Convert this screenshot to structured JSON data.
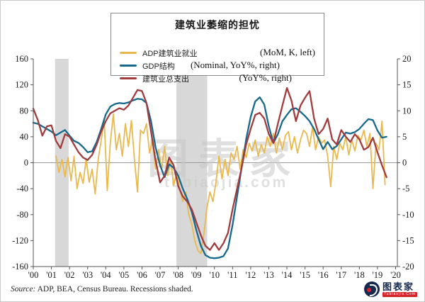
{
  "chart_data": {
    "type": "line",
    "title": "建筑业萎缩的担忧",
    "legend_position": "top-center",
    "grid": "zero-line-only",
    "x_axis": {
      "tick_start_year": 2000,
      "tick_step": 1,
      "tick_labels": [
        "'00",
        "'01",
        "'02",
        "'03",
        "'04",
        "'05",
        "'06",
        "'07",
        "'08",
        "'09",
        "'10",
        "'11",
        "'12",
        "'13",
        "'14",
        "'15",
        "'16",
        "'17",
        "'18",
        "'19",
        "'20"
      ],
      "range": [
        2000,
        2020.1
      ]
    },
    "left_axis": {
      "ticks": [
        160,
        120,
        80,
        40,
        0,
        -40,
        -80,
        -120,
        -160
      ],
      "range": [
        -160,
        160
      ],
      "units": "MoM, thousands"
    },
    "right_axis": {
      "ticks": [
        20,
        15,
        10,
        5,
        0,
        -5,
        -10,
        -15,
        -20
      ],
      "range": [
        -20,
        20
      ],
      "units": "YoY %"
    },
    "recessions": [
      {
        "start": 2001.2,
        "end": 2001.95
      },
      {
        "start": 2007.9,
        "end": 2009.6
      }
    ],
    "recession_color": "#d8d8d8",
    "zero_line_color": "#9a9a9a",
    "axis_color": "#555555",
    "series": [
      {
        "name": "ADP建筑业就业",
        "note": "(MoM, K, left)",
        "axis": "left",
        "color": "#e9b94e",
        "width": 1.8,
        "x_start": 2001.25,
        "x_step": 0.166667,
        "values": [
          10,
          -15,
          5,
          -22,
          8,
          -28,
          10,
          -40,
          -15,
          -32,
          6,
          -30,
          -10,
          -48,
          5,
          35,
          65,
          -43,
          30,
          75,
          20,
          45,
          10,
          60,
          25,
          65,
          5,
          -45,
          50,
          45,
          60,
          15,
          35,
          -10,
          20,
          -10,
          25,
          -20,
          5,
          -35,
          -15,
          -40,
          -60,
          -45,
          -80,
          -95,
          -120,
          -135,
          -140,
          -110,
          -70,
          -45,
          -60,
          -30,
          10,
          -25,
          5,
          -20,
          15,
          5,
          25,
          -10,
          20,
          8,
          30,
          18,
          35,
          10,
          28,
          15,
          40,
          25,
          45,
          15,
          38,
          20,
          42,
          48,
          20,
          40,
          15,
          35,
          50,
          45,
          25,
          55,
          20,
          40,
          30,
          35,
          10,
          -37,
          25,
          5,
          30,
          20,
          40,
          12,
          35,
          18,
          42,
          35,
          50,
          25,
          45,
          -40,
          30,
          20,
          64,
          -34
        ]
      },
      {
        "name": "GDP结构",
        "note": "(Nominal, YoY%, right)",
        "axis": "right",
        "color": "#17698c",
        "width": 2.3,
        "x_start": 2000.0,
        "x_step": 0.25,
        "values": [
          7.7,
          7.5,
          7.0,
          6.5,
          6.0,
          5.3,
          5.8,
          6.3,
          5.2,
          4.2,
          3.8,
          3.0,
          2.0,
          2.2,
          4.0,
          6.5,
          9.3,
          10.8,
          11.3,
          11.5,
          11.4,
          11.6,
          12.0,
          12.3,
          12.2,
          11.5,
          8.0,
          3.0,
          -0.5,
          -2.8,
          -0.3,
          -1.0,
          -2.5,
          -5.0,
          -7.0,
          -9.5,
          -13.0,
          -16.0,
          -17.8,
          -18.3,
          -18.4,
          -18.3,
          -18.0,
          -16.5,
          -12.0,
          -6.5,
          -1.0,
          4.5,
          8.8,
          11.8,
          12.6,
          11.2,
          7.0,
          3.8,
          5.5,
          8.0,
          9.2,
          10.3,
          10.5,
          9.8,
          9.0,
          8.0,
          6.5,
          4.5,
          2.6,
          4.0,
          2.6,
          3.2,
          4.5,
          5.8,
          5.6,
          5.9,
          6.5,
          7.5,
          8.4,
          8.2,
          6.2,
          4.8,
          5.0
        ]
      },
      {
        "name": "建筑业总支出",
        "note": "(YoY%, right)",
        "axis": "right",
        "color": "#a23b3e",
        "width": 2.3,
        "x_start": 2000.0,
        "x_step": 0.25,
        "values": [
          10.4,
          8.2,
          5.2,
          7.0,
          7.2,
          4.2,
          2.8,
          5.5,
          5.0,
          3.5,
          2.0,
          1.0,
          0.5,
          1.5,
          3.5,
          6.0,
          8.0,
          9.5,
          10.0,
          10.5,
          10.2,
          11.0,
          12.5,
          14.0,
          13.8,
          11.5,
          6.0,
          0.5,
          -3.8,
          -2.5,
          1.0,
          -0.5,
          -4.5,
          -6.5,
          -7.5,
          -9.0,
          -11.5,
          -14.0,
          -16.0,
          -16.8,
          -15.5,
          -16.8,
          -15.5,
          -13.5,
          -9.0,
          -5.0,
          -1.0,
          3.5,
          6.5,
          9.2,
          9.6,
          8.5,
          5.5,
          3.8,
          7.5,
          11.0,
          14.4,
          12.0,
          8.0,
          11.0,
          12.5,
          13.8,
          8.5,
          5.5,
          6.5,
          8.5,
          4.5,
          3.5,
          6.3,
          5.0,
          4.0,
          5.5,
          4.5,
          2.5,
          3.0,
          4.8,
          2.0,
          -0.5,
          -2.8
        ]
      }
    ]
  },
  "watermark": {
    "text": "图表家",
    "subtext": "tubiaojia.com"
  },
  "footer": {
    "source_label": "Source:",
    "source_text": "ADP, BEA, Census Bureau. Recessions shaded."
  },
  "brand": {
    "name": "图表家",
    "tagline": "Tubiaojia.Com"
  }
}
